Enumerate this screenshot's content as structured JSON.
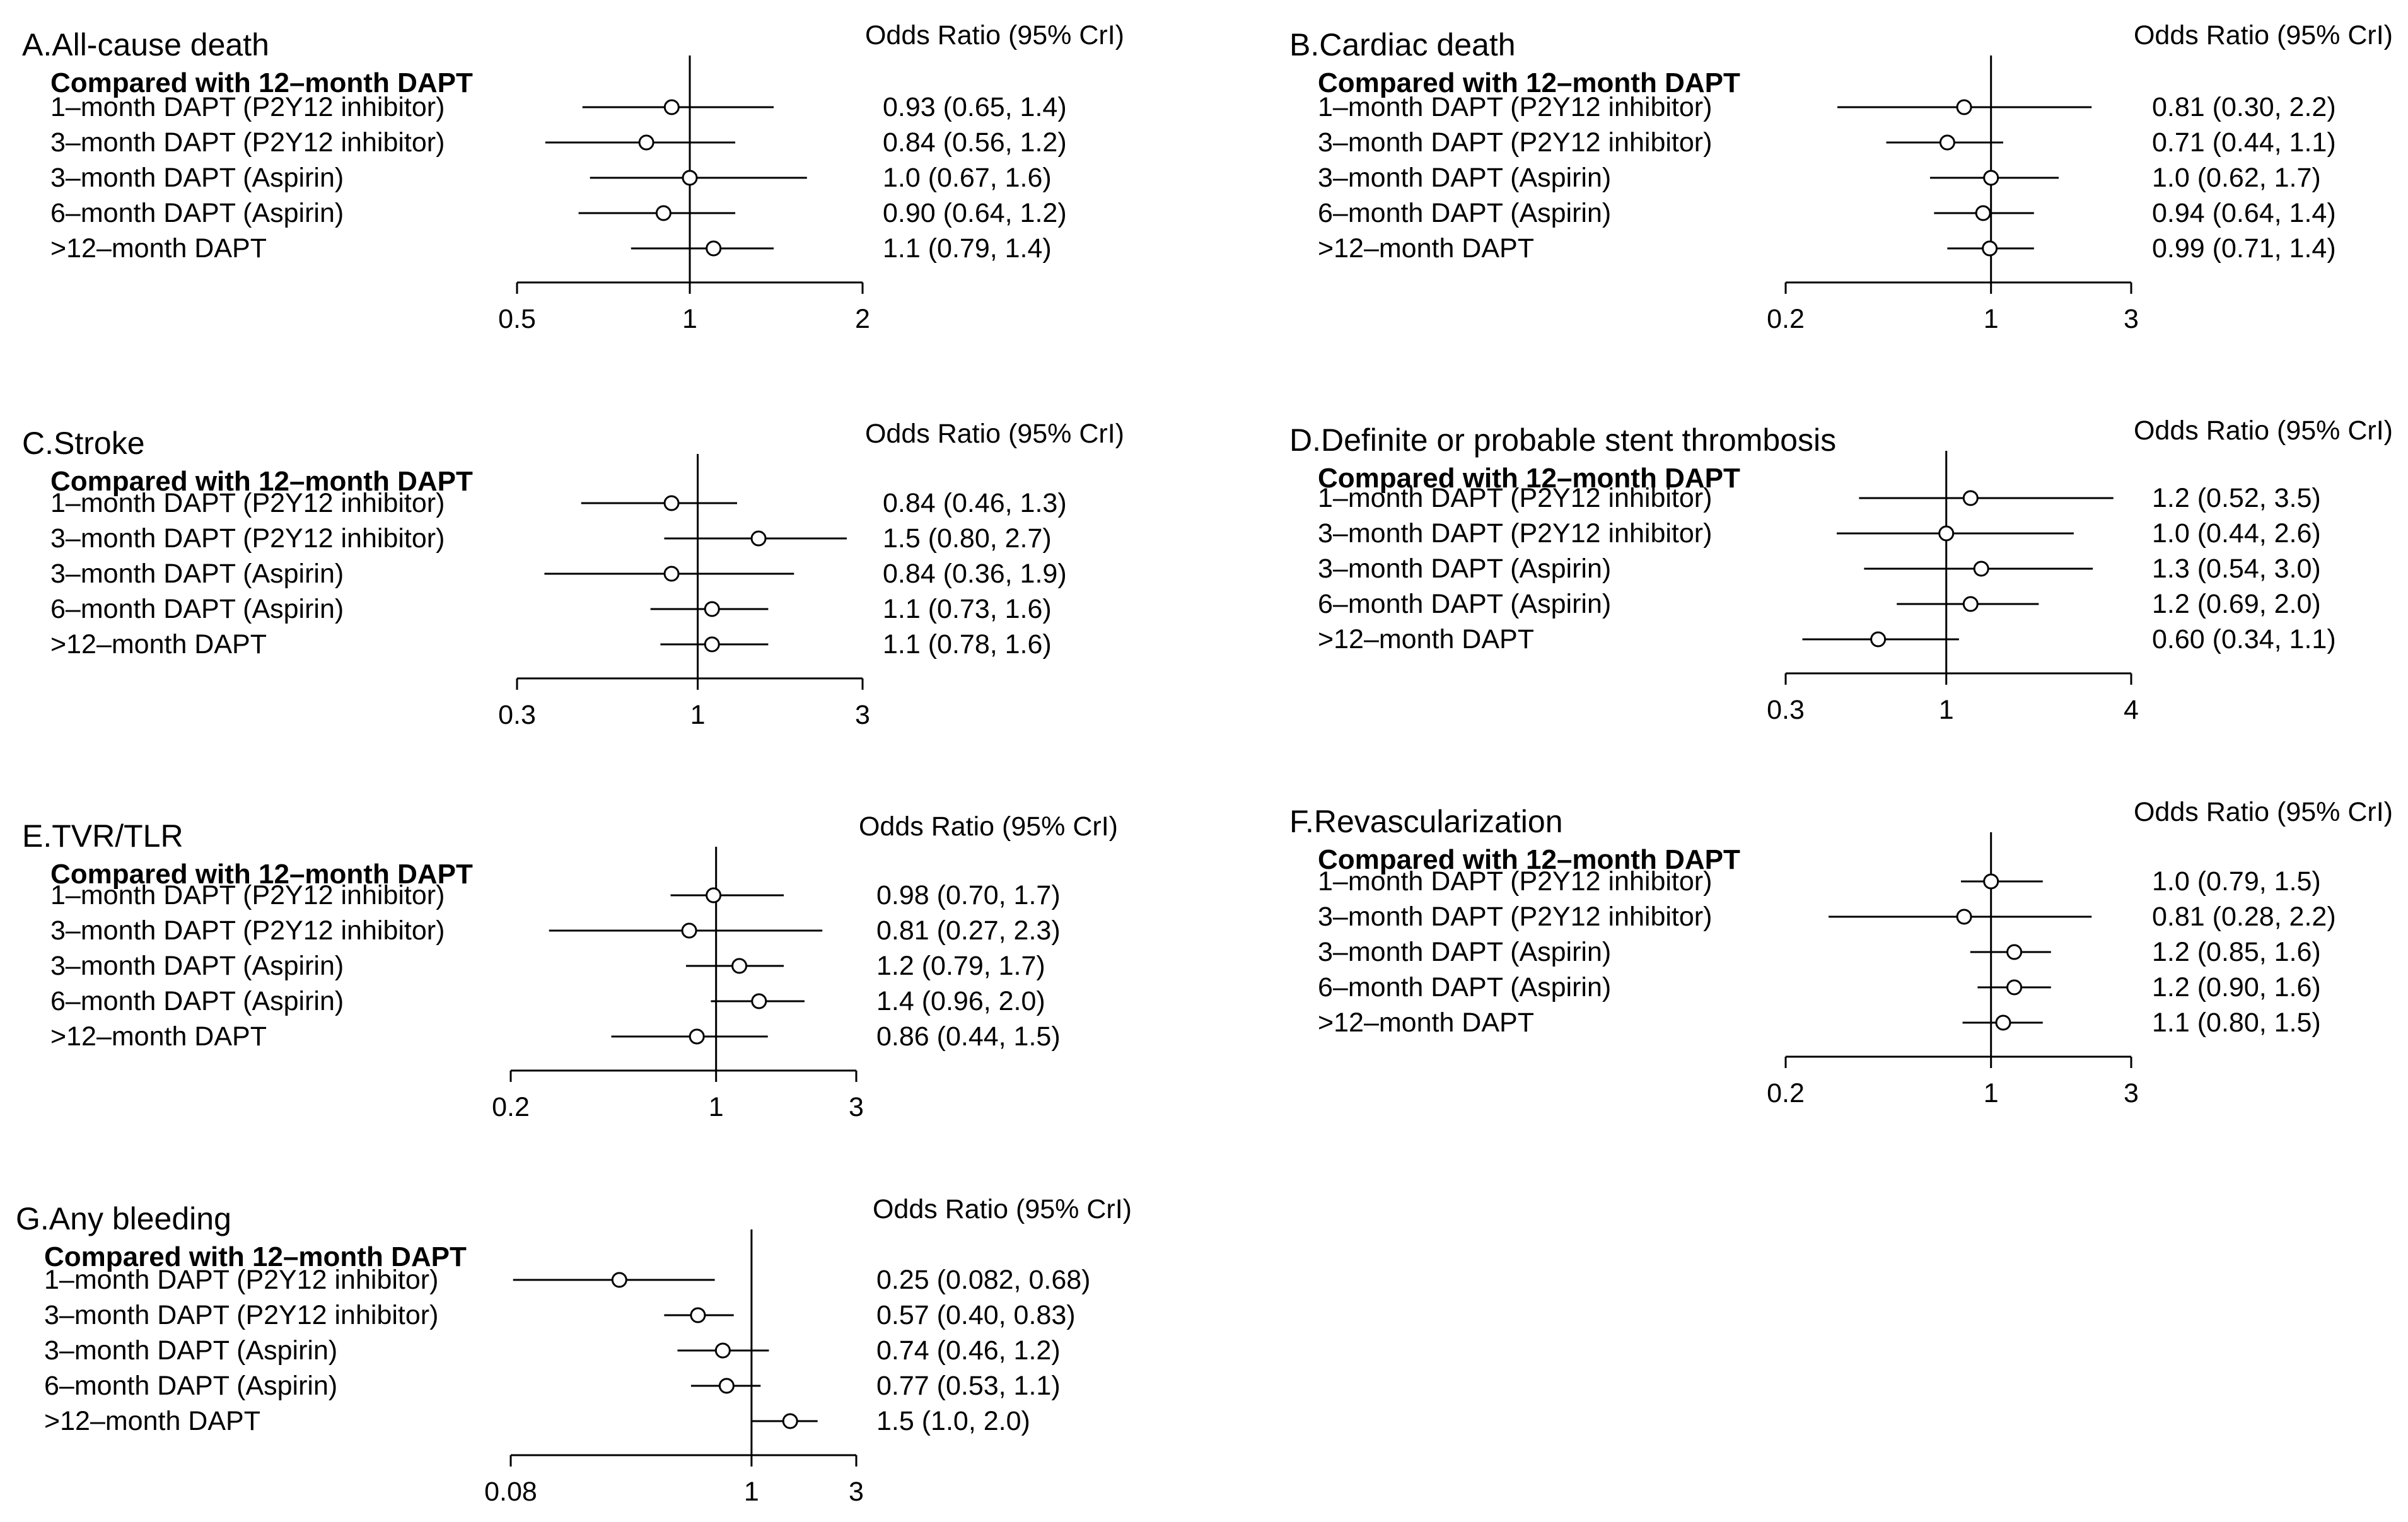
{
  "figure": {
    "background": "#ffffff",
    "ink": "#000000"
  },
  "chart_data": [
    {
      "type": "forest",
      "panel": "A",
      "title": "A.All-cause death",
      "subtitle": "Compared with 12–month DAPT",
      "header": "Odds Ratio (95% CrI)",
      "scale": "log",
      "reference": 1,
      "xlim": [
        0.5,
        2
      ],
      "ticks": [
        0.5,
        1,
        2
      ],
      "tick_labels": [
        "0.5",
        "1",
        "2"
      ],
      "rows": [
        {
          "label": "1–month DAPT (P2Y12 inhibitor)",
          "or": 0.93,
          "lo": 0.65,
          "hi": 1.4,
          "text": "0.93 (0.65, 1.4)"
        },
        {
          "label": "3–month DAPT (P2Y12 inhibitor)",
          "or": 0.84,
          "lo": 0.56,
          "hi": 1.2,
          "text": "0.84 (0.56, 1.2)"
        },
        {
          "label": "3–month DAPT (Aspirin)",
          "or": 1.0,
          "lo": 0.67,
          "hi": 1.6,
          "text": "1.0 (0.67, 1.6)"
        },
        {
          "label": "6–month DAPT (Aspirin)",
          "or": 0.9,
          "lo": 0.64,
          "hi": 1.2,
          "text": "0.90 (0.64, 1.2)"
        },
        {
          "label": ">12–month DAPT",
          "or": 1.1,
          "lo": 0.79,
          "hi": 1.4,
          "text": "1.1 (0.79, 1.4)"
        }
      ]
    },
    {
      "type": "forest",
      "panel": "B",
      "title": "B.Cardiac death",
      "subtitle": "Compared with 12–month DAPT",
      "header": "Odds Ratio (95% CrI)",
      "scale": "log",
      "reference": 1,
      "xlim": [
        0.2,
        3
      ],
      "ticks": [
        0.2,
        1,
        3
      ],
      "tick_labels": [
        "0.2",
        "1",
        "3"
      ],
      "rows": [
        {
          "label": "1–month DAPT (P2Y12 inhibitor)",
          "or": 0.81,
          "lo": 0.3,
          "hi": 2.2,
          "text": "0.81 (0.30, 2.2)"
        },
        {
          "label": "3–month DAPT (P2Y12 inhibitor)",
          "or": 0.71,
          "lo": 0.44,
          "hi": 1.1,
          "text": "0.71 (0.44, 1.1)"
        },
        {
          "label": "3–month DAPT (Aspirin)",
          "or": 1.0,
          "lo": 0.62,
          "hi": 1.7,
          "text": "1.0 (0.62, 1.7)"
        },
        {
          "label": "6–month DAPT (Aspirin)",
          "or": 0.94,
          "lo": 0.64,
          "hi": 1.4,
          "text": "0.94 (0.64, 1.4)"
        },
        {
          "label": ">12–month DAPT",
          "or": 0.99,
          "lo": 0.71,
          "hi": 1.4,
          "text": "0.99 (0.71, 1.4)"
        }
      ]
    },
    {
      "type": "forest",
      "panel": "C",
      "title": "C.Stroke",
      "subtitle": "Compared with 12–month DAPT",
      "header": "Odds Ratio (95% CrI)",
      "scale": "log",
      "reference": 1,
      "xlim": [
        0.3,
        3
      ],
      "ticks": [
        0.3,
        1,
        3
      ],
      "tick_labels": [
        "0.3",
        "1",
        "3"
      ],
      "rows": [
        {
          "label": "1–month DAPT (P2Y12 inhibitor)",
          "or": 0.84,
          "lo": 0.46,
          "hi": 1.3,
          "text": "0.84 (0.46, 1.3)"
        },
        {
          "label": "3–month DAPT (P2Y12 inhibitor)",
          "or": 1.5,
          "lo": 0.8,
          "hi": 2.7,
          "text": "1.5 (0.80, 2.7)"
        },
        {
          "label": "3–month DAPT (Aspirin)",
          "or": 0.84,
          "lo": 0.36,
          "hi": 1.9,
          "text": "0.84 (0.36, 1.9)"
        },
        {
          "label": "6–month DAPT (Aspirin)",
          "or": 1.1,
          "lo": 0.73,
          "hi": 1.6,
          "text": "1.1 (0.73, 1.6)"
        },
        {
          "label": ">12–month DAPT",
          "or": 1.1,
          "lo": 0.78,
          "hi": 1.6,
          "text": "1.1 (0.78, 1.6)"
        }
      ]
    },
    {
      "type": "forest",
      "panel": "D",
      "title": "D.Definite or probable stent thrombosis",
      "subtitle": "Compared with 12–month DAPT",
      "header": "Odds Ratio (95% CrI)",
      "scale": "log",
      "reference": 1,
      "xlim": [
        0.3,
        4
      ],
      "ticks": [
        0.3,
        1,
        4
      ],
      "tick_labels": [
        "0.3",
        "1",
        "4"
      ],
      "rows": [
        {
          "label": "1–month DAPT (P2Y12 inhibitor)",
          "or": 1.2,
          "lo": 0.52,
          "hi": 3.5,
          "text": "1.2 (0.52, 3.5)"
        },
        {
          "label": "3–month DAPT (P2Y12 inhibitor)",
          "or": 1.0,
          "lo": 0.44,
          "hi": 2.6,
          "text": "1.0 (0.44, 2.6)"
        },
        {
          "label": "3–month DAPT (Aspirin)",
          "or": 1.3,
          "lo": 0.54,
          "hi": 3.0,
          "text": "1.3 (0.54, 3.0)"
        },
        {
          "label": "6–month DAPT (Aspirin)",
          "or": 1.2,
          "lo": 0.69,
          "hi": 2.0,
          "text": "1.2 (0.69, 2.0)"
        },
        {
          "label": ">12–month DAPT",
          "or": 0.6,
          "lo": 0.34,
          "hi": 1.1,
          "text": "0.60 (0.34, 1.1)"
        }
      ]
    },
    {
      "type": "forest",
      "panel": "E",
      "title": "E.TVR/TLR",
      "subtitle": "Compared with 12–month DAPT",
      "header": "Odds Ratio (95% CrI)",
      "scale": "log",
      "reference": 1,
      "xlim": [
        0.2,
        3
      ],
      "ticks": [
        0.2,
        1,
        3
      ],
      "tick_labels": [
        "0.2",
        "1",
        "3"
      ],
      "rows": [
        {
          "label": "1–month DAPT (P2Y12 inhibitor)",
          "or": 0.98,
          "lo": 0.7,
          "hi": 1.7,
          "text": "0.98 (0.70, 1.7)"
        },
        {
          "label": "3–month DAPT (P2Y12 inhibitor)",
          "or": 0.81,
          "lo": 0.27,
          "hi": 2.3,
          "text": "0.81 (0.27, 2.3)"
        },
        {
          "label": "3–month DAPT (Aspirin)",
          "or": 1.2,
          "lo": 0.79,
          "hi": 1.7,
          "text": "1.2 (0.79, 1.7)"
        },
        {
          "label": "6–month DAPT (Aspirin)",
          "or": 1.4,
          "lo": 0.96,
          "hi": 2.0,
          "text": "1.4 (0.96, 2.0)"
        },
        {
          "label": ">12–month DAPT",
          "or": 0.86,
          "lo": 0.44,
          "hi": 1.5,
          "text": "0.86 (0.44, 1.5)"
        }
      ]
    },
    {
      "type": "forest",
      "panel": "F",
      "title": "F.Revascularization",
      "subtitle": "Compared with 12–month DAPT",
      "header": "Odds Ratio (95% CrI)",
      "scale": "log",
      "reference": 1,
      "xlim": [
        0.2,
        3
      ],
      "ticks": [
        0.2,
        1,
        3
      ],
      "tick_labels": [
        "0.2",
        "1",
        "3"
      ],
      "rows": [
        {
          "label": "1–month DAPT (P2Y12 inhibitor)",
          "or": 1.0,
          "lo": 0.79,
          "hi": 1.5,
          "text": "1.0 (0.79, 1.5)"
        },
        {
          "label": "3–month DAPT (P2Y12 inhibitor)",
          "or": 0.81,
          "lo": 0.28,
          "hi": 2.2,
          "text": "0.81 (0.28, 2.2)"
        },
        {
          "label": "3–month DAPT (Aspirin)",
          "or": 1.2,
          "lo": 0.85,
          "hi": 1.6,
          "text": "1.2 (0.85, 1.6)"
        },
        {
          "label": "6–month DAPT (Aspirin)",
          "or": 1.2,
          "lo": 0.9,
          "hi": 1.6,
          "text": "1.2 (0.90, 1.6)"
        },
        {
          "label": ">12–month DAPT",
          "or": 1.1,
          "lo": 0.8,
          "hi": 1.5,
          "text": "1.1 (0.80, 1.5)"
        }
      ]
    },
    {
      "type": "forest",
      "panel": "G",
      "title": "G.Any bleeding",
      "subtitle": "Compared with 12–month DAPT",
      "header": "Odds Ratio (95% CrI)",
      "scale": "log",
      "reference": 1,
      "xlim": [
        0.08,
        3
      ],
      "ticks": [
        0.08,
        1,
        3
      ],
      "tick_labels": [
        "0.08",
        "1",
        "3"
      ],
      "rows": [
        {
          "label": "1–month DAPT (P2Y12 inhibitor)",
          "or": 0.25,
          "lo": 0.082,
          "hi": 0.68,
          "text": "0.25 (0.082, 0.68)"
        },
        {
          "label": "3–month DAPT (P2Y12 inhibitor)",
          "or": 0.57,
          "lo": 0.4,
          "hi": 0.83,
          "text": "0.57 (0.40, 0.83)"
        },
        {
          "label": "3–month DAPT (Aspirin)",
          "or": 0.74,
          "lo": 0.46,
          "hi": 1.2,
          "text": "0.74 (0.46, 1.2)"
        },
        {
          "label": "6–month DAPT (Aspirin)",
          "or": 0.77,
          "lo": 0.53,
          "hi": 1.1,
          "text": "0.77 (0.53, 1.1)"
        },
        {
          "label": ">12–month DAPT",
          "or": 1.5,
          "lo": 1.0,
          "hi": 2.0,
          "text": "1.5 (1.0, 2.0)"
        }
      ]
    }
  ]
}
